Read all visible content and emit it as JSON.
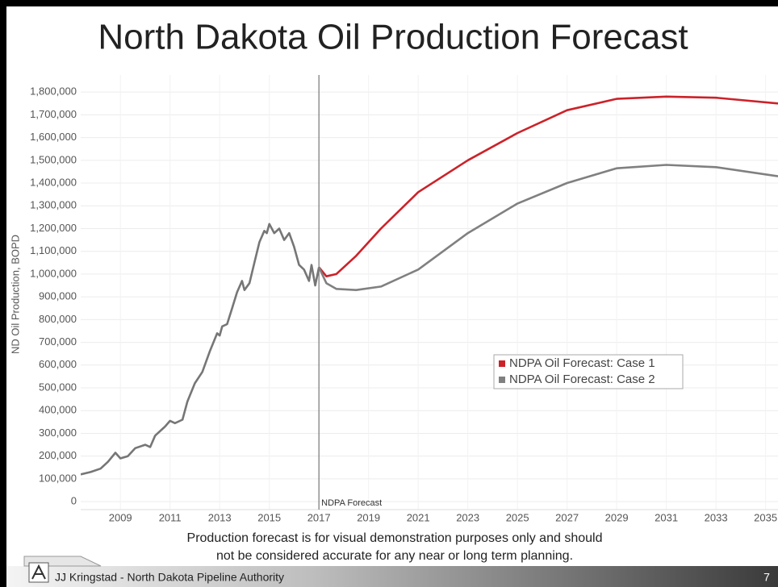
{
  "chart_data": {
    "type": "line",
    "title": "North Dakota Oil Production Forecast",
    "ylabel": "ND Oil Production, BOPD",
    "xlim": [
      2007.4,
      2035.5
    ],
    "xticks": [
      2009,
      2011,
      2013,
      2015,
      2017,
      2019,
      2021,
      2023,
      2025,
      2027,
      2029,
      2031,
      2033,
      2035
    ],
    "ylim": [
      -35000,
      1875000
    ],
    "yticks": [
      0,
      {
        "value": 100000,
        "label": "100,000"
      },
      {
        "value": 200000,
        "label": "200,000"
      },
      {
        "value": 300000,
        "label": "300,000"
      },
      {
        "value": 400000,
        "label": "400,000"
      },
      {
        "value": 500000,
        "label": "500,000"
      },
      {
        "value": 600000,
        "label": "600,000"
      },
      {
        "value": 700000,
        "label": "700,000"
      },
      {
        "value": 800000,
        "label": "800,000"
      },
      {
        "value": 900000,
        "label": "900,000"
      },
      {
        "value": 1000000,
        "label": "1,000,000"
      },
      {
        "value": 1100000,
        "label": "1,100,000"
      },
      {
        "value": 1200000,
        "label": "1,200,000"
      },
      {
        "value": 1300000,
        "label": "1,300,000"
      },
      {
        "value": 1400000,
        "label": "1,400,000"
      },
      {
        "value": 1500000,
        "label": "1,500,000"
      },
      {
        "value": 1600000,
        "label": "1,600,000"
      },
      {
        "value": 1700000,
        "label": "1,700,000"
      },
      {
        "value": 1800000,
        "label": "1,800,000"
      }
    ],
    "grid": true,
    "legend": "right",
    "annotation": {
      "text": "NDPA Forecast",
      "x": 2017
    },
    "series": [
      {
        "color": "#767676",
        "x": [
          2007.4,
          2007.8,
          2008.2,
          2008.5,
          2008.8,
          2009.0,
          2009.3,
          2009.6,
          2010.0,
          2010.2,
          2010.4,
          2010.8,
          2011.0,
          2011.2,
          2011.5,
          2011.7,
          2012.0,
          2012.3,
          2012.6,
          2012.9,
          2013.0,
          2013.1,
          2013.3,
          2013.5,
          2013.7,
          2013.9,
          2014.0,
          2014.2,
          2014.4,
          2014.6,
          2014.8,
          2014.9,
          2015.0,
          2015.2,
          2015.4,
          2015.6,
          2015.8,
          2016.0,
          2016.2,
          2016.4,
          2016.6,
          2016.7,
          2016.85,
          2017.0
        ],
        "values": [
          120000,
          130000,
          145000,
          175000,
          215000,
          190000,
          200000,
          235000,
          250000,
          240000,
          290000,
          330000,
          355000,
          345000,
          360000,
          440000,
          520000,
          570000,
          660000,
          740000,
          730000,
          770000,
          780000,
          850000,
          920000,
          970000,
          930000,
          960000,
          1050000,
          1140000,
          1190000,
          1180000,
          1220000,
          1180000,
          1200000,
          1150000,
          1180000,
          1120000,
          1040000,
          1020000,
          970000,
          1040000,
          950000,
          1030000
        ]
      },
      {
        "name": "NDPA Oil Forecast: Case 1",
        "color": "#cc2229",
        "x": [
          2017.0,
          2017.3,
          2017.7,
          2018.5,
          2019.5,
          2021,
          2023,
          2025,
          2027,
          2029,
          2031,
          2033,
          2035.5
        ],
        "values": [
          1030000,
          990000,
          1000000,
          1080000,
          1200000,
          1360000,
          1500000,
          1620000,
          1720000,
          1770000,
          1780000,
          1775000,
          1750000
        ]
      },
      {
        "name": "NDPA Oil Forecast: Case 2",
        "color": "#808080",
        "x": [
          2017.0,
          2017.3,
          2017.7,
          2018.5,
          2019.5,
          2021,
          2023,
          2025,
          2027,
          2029,
          2031,
          2033,
          2035.5
        ],
        "values": [
          1030000,
          960000,
          935000,
          930000,
          945000,
          1020000,
          1180000,
          1310000,
          1400000,
          1465000,
          1480000,
          1470000,
          1430000
        ]
      }
    ]
  },
  "disclaimer": [
    "Production forecast is for visual demonstration purposes only and should",
    "not be considered accurate for any near or long term planning."
  ],
  "footer": {
    "author": "JJ Kringstad - North Dakota Pipeline Authority",
    "page": "7"
  }
}
